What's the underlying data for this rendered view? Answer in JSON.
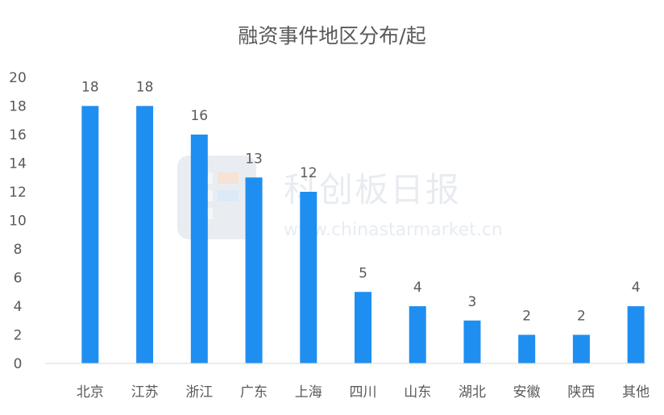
{
  "chart_data": {
    "type": "bar",
    "title": "融资事件地区分布/起",
    "categories": [
      "北京",
      "江苏",
      "浙江",
      "广东",
      "上海",
      "四川",
      "山东",
      "湖北",
      "安徽",
      "陕西",
      "其他"
    ],
    "values": [
      18,
      18,
      16,
      13,
      12,
      5,
      4,
      3,
      2,
      2,
      4
    ],
    "ylim": [
      0,
      20
    ],
    "yticks": [
      0,
      2,
      4,
      6,
      8,
      10,
      12,
      14,
      16,
      18,
      20
    ],
    "grid": false,
    "legend": "none",
    "bar_color": "#1f8ef1"
  },
  "watermark": {
    "name": "科创板日报",
    "url": "www.chinastarmarket.cn"
  }
}
